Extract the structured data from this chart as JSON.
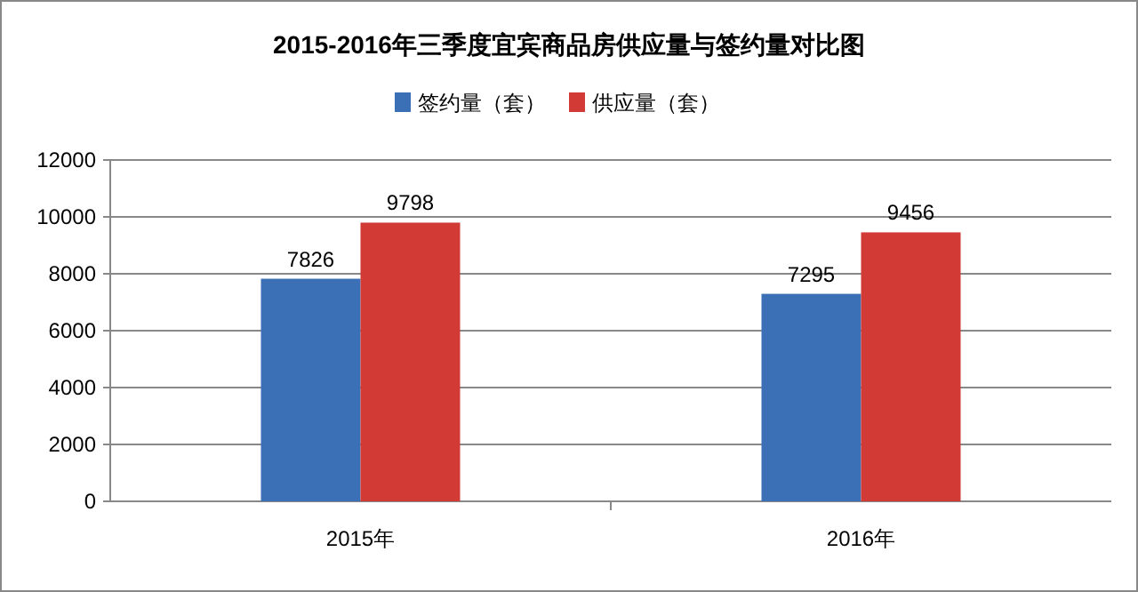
{
  "chart_data": {
    "type": "bar",
    "title": "2015-2016年三季度宜宾商品房供应量与签约量对比图",
    "categories": [
      "2015年",
      "2016年"
    ],
    "series": [
      {
        "name": "签约量（套）",
        "color": "#3b6fb6",
        "values": [
          7826,
          7295
        ]
      },
      {
        "name": "供应量（套）",
        "color": "#d23a35",
        "values": [
          9798,
          9456
        ]
      }
    ],
    "ylim": [
      0,
      12000
    ],
    "yticks": [
      0,
      2000,
      4000,
      6000,
      8000,
      10000,
      12000
    ],
    "grid": "y",
    "legend": "top",
    "data_labels": true
  }
}
